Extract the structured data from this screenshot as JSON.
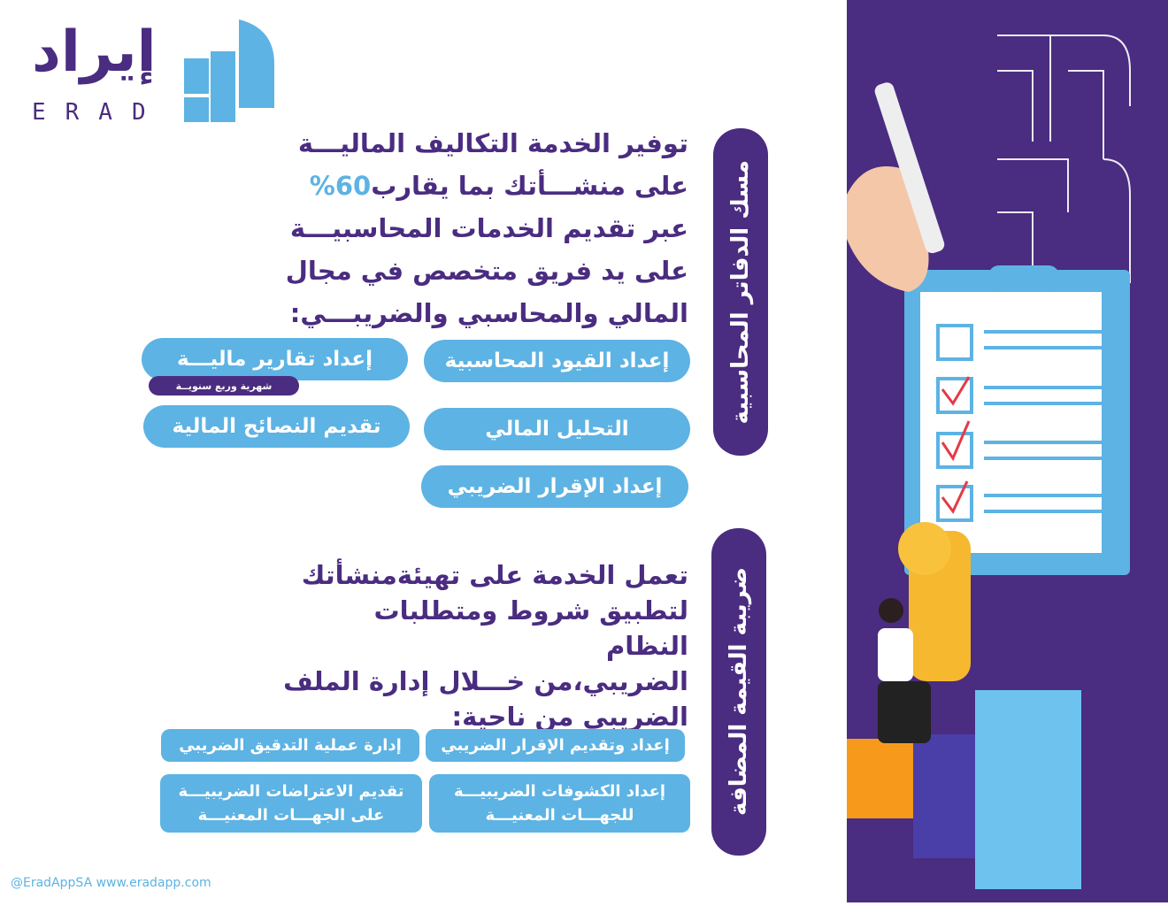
{
  "logo": {
    "arabic": "إيراد",
    "english": "ERAD"
  },
  "section1": {
    "title": "مسك الدفاتر المحاسبية",
    "lines": [
      "توفير الخدمة التكاليف الماليـــة",
      "على منشـــأتك بما يقارب",
      "عبر تقديم الخدمات المحاسبيـــة",
      "على يد فريق متخصص في مجال",
      "المالي والمحاسبي والضريبـــي:"
    ],
    "percent": "60%",
    "services": [
      "إعداد القيود المحاسبية",
      "إعداد تقارير ماليـــة",
      "التحليل المالي",
      "تقديم النصائح المالية",
      "إعداد الإقرار الضريبي"
    ],
    "reports_tag": "شهرية وربع سنويــة"
  },
  "section2": {
    "title": "ضريبة القيمة المضافة",
    "lines": [
      "تعمل الخدمة على تهيئةمنشأتك",
      "لتطبيق شروط ومتطلبات النظام",
      "الضريبي،من خـــلال  إدارة الملف",
      "الضريبي من ناحية:"
    ],
    "services": [
      "إعداد وتقديم الإقرار الضريبي",
      "إدارة عملية التدقيق الضريبي",
      "إعداد الكشوفات الضريبيـــة للجهـــات المعنيـــة",
      "تقديم الاعتراضات الضريبيـــة على الجهـــات المعنيـــة"
    ]
  },
  "footer": "@EradAppSA www.eradapp.com",
  "colors": {
    "purple": "#4a2c80",
    "blue": "#5db3e3"
  }
}
